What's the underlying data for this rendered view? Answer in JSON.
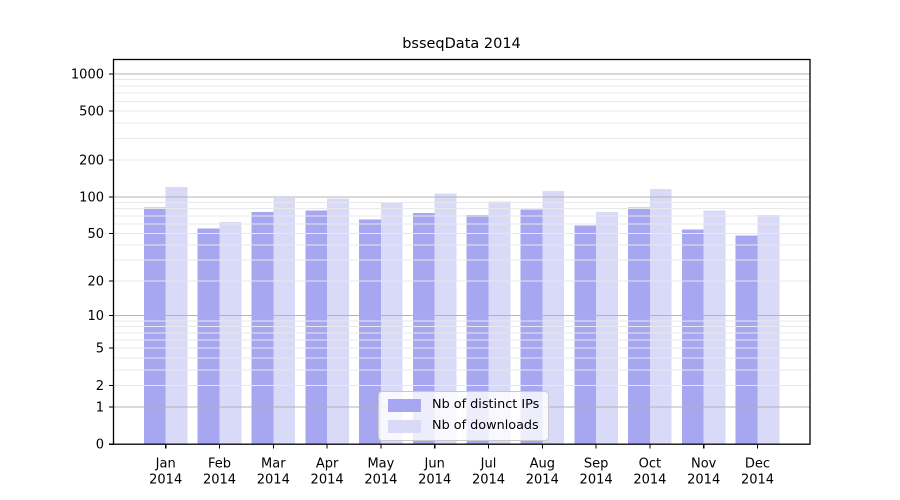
{
  "chart_data": {
    "type": "bar",
    "title": "bsseqData 2014",
    "categories": [
      "Jan 2014",
      "Feb 2014",
      "Mar 2014",
      "Apr 2014",
      "May 2014",
      "Jun 2014",
      "Jul 2014",
      "Aug 2014",
      "Sep 2014",
      "Oct 2014",
      "Nov 2014",
      "Dec 2014"
    ],
    "series": [
      {
        "name": "Nb of distinct IPs",
        "color": "#a6a6f1",
        "values": [
          82,
          55,
          75,
          77,
          65,
          74,
          71,
          79,
          58,
          82,
          54,
          48
        ]
      },
      {
        "name": "Nb of downloads",
        "color": "#d9d9f8",
        "values": [
          120,
          62,
          98,
          97,
          90,
          107,
          92,
          112,
          75,
          116,
          77,
          71
        ]
      }
    ],
    "xlabel": "",
    "ylabel": "",
    "y_axis": {
      "scale": "log1p",
      "tick_labels": [
        "0",
        "1",
        "2",
        "5",
        "10",
        "20",
        "50",
        "100",
        "200",
        "500",
        "1000"
      ],
      "tick_values": [
        0,
        1,
        2,
        5,
        10,
        20,
        50,
        100,
        200,
        500,
        1000
      ],
      "major_grid_values": [
        1,
        10,
        100,
        1000
      ],
      "minor_grid_values": [
        2,
        3,
        4,
        5,
        6,
        7,
        8,
        9,
        20,
        30,
        40,
        50,
        60,
        70,
        80,
        90,
        200,
        300,
        400,
        500,
        600,
        700,
        800,
        900
      ],
      "ylim": [
        0,
        1330
      ]
    },
    "legend": {
      "position": "lower center"
    },
    "grid": "on",
    "style": {
      "major_grid_color": "#b3b3b3",
      "minor_grid_color": "#e8e8ea",
      "axis_color": "#000000",
      "text_color": "#000000",
      "legend_border_color": "#c9c9c9",
      "background": "#ffffff"
    }
  }
}
